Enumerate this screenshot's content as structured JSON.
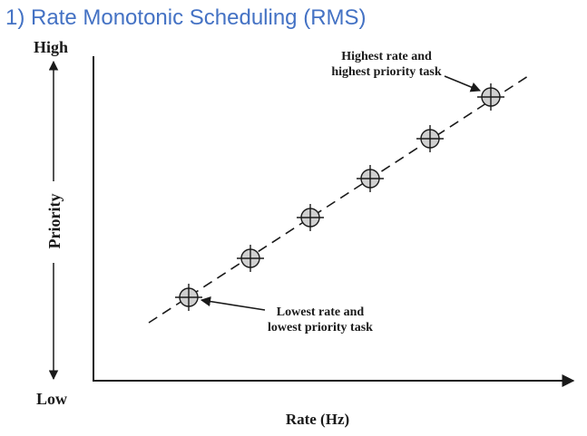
{
  "slide": {
    "title": "1) Rate Monotonic Scheduling (RMS)"
  },
  "diagram": {
    "y_top_label": "High",
    "y_bottom_label": "Low",
    "y_axis_label": "Priority",
    "x_axis_label": "Rate (Hz)",
    "annotations": [
      {
        "id": "highest",
        "lines": [
          "Highest rate and",
          "highest priority task"
        ]
      },
      {
        "id": "lowest",
        "lines": [
          "Lowest rate and",
          "lowest priority task"
        ]
      }
    ],
    "task_count": 6,
    "colors": {
      "marker_fill": "#d0d0d0",
      "line": "#1a1a1a",
      "title": "#4472c4"
    }
  }
}
